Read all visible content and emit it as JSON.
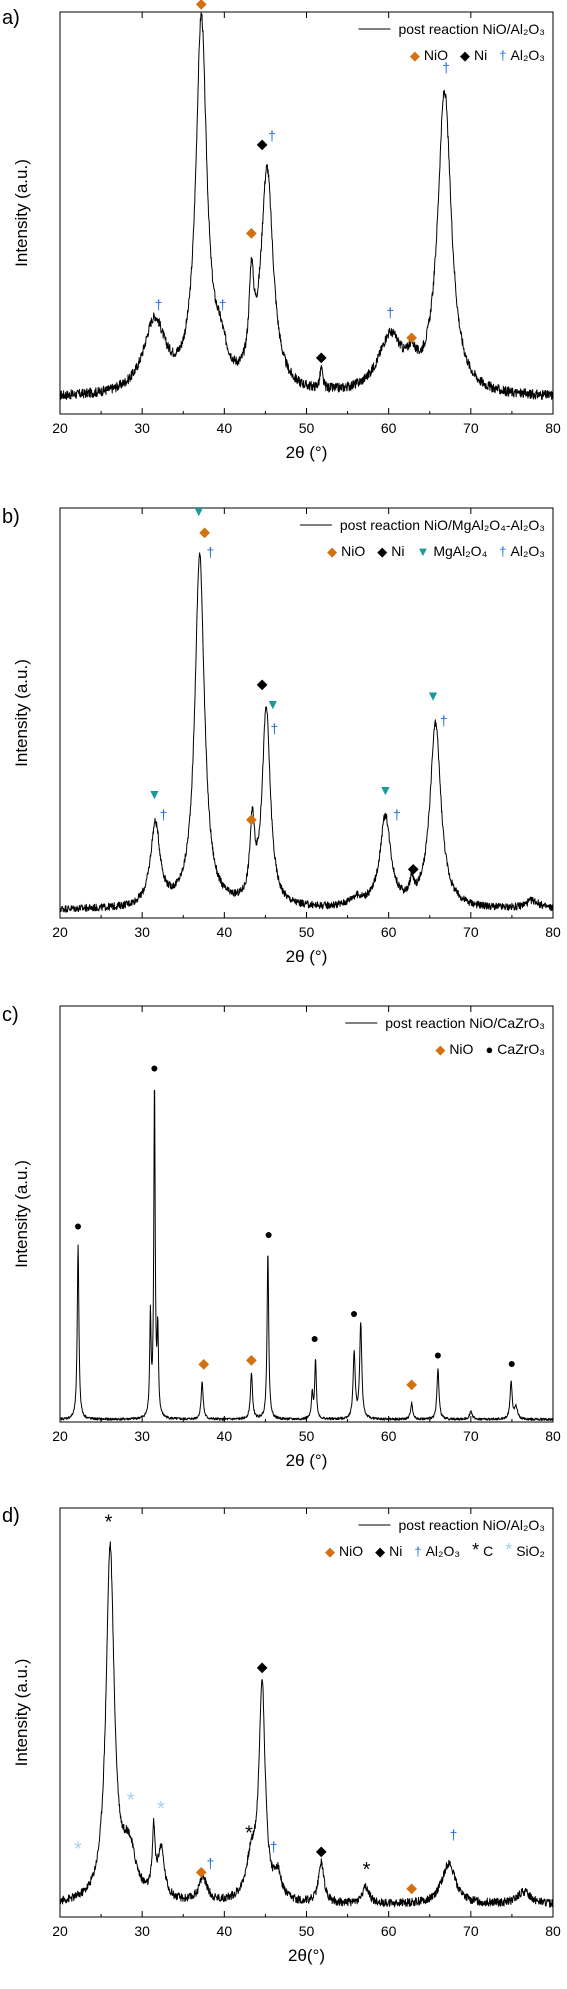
{
  "colors": {
    "NiO": "#d4700f",
    "Ni": "#000000",
    "Al2O3": "#1f6fd6",
    "MgAl2O4": "#1a9a9a",
    "CaZrO3": "#000000",
    "C": "#000000",
    "SiO2": "#a8cff2"
  },
  "chart_data": [
    {
      "panel_label": "a)",
      "type": "line",
      "xlabel": "2θ (°)",
      "ylabel": "Intensity (a.u.)",
      "xlim": [
        20,
        80
      ],
      "xticks": [
        20,
        30,
        40,
        50,
        60,
        70,
        80
      ],
      "ylim": [
        0,
        100
      ],
      "yticks_shown": false,
      "legend_placement": "top-right",
      "series": [
        {
          "name": "post reaction NiO/Al2O3",
          "line_legend": "post reaction NiO/Al₂O₃"
        }
      ],
      "legend_markers": [
        {
          "symbol": "◆",
          "color_key": "NiO",
          "label": "NiO"
        },
        {
          "symbol": "◆",
          "color_key": "Ni",
          "label": "Ni"
        },
        {
          "symbol": "†",
          "color_key": "Al2O3",
          "label": "Al₂O₃"
        }
      ],
      "baseline": 4,
      "noise": 1.2,
      "peaks": [
        [
          31.5,
          18,
          1.6
        ],
        [
          37.2,
          92,
          0.8
        ],
        [
          43.3,
          22,
          0.35
        ],
        [
          45.2,
          55,
          0.9
        ],
        [
          51.8,
          5,
          0.2
        ],
        [
          60.2,
          14,
          1.8
        ],
        [
          62.8,
          5,
          0.6
        ],
        [
          66.8,
          75,
          1.0
        ],
        [
          39.5,
          8,
          1.0
        ]
      ],
      "annotations": [
        {
          "x": 37.2,
          "y": 101,
          "symbol": "◆",
          "color_key": "NiO"
        },
        {
          "x": 32.0,
          "y": 26,
          "symbol": "†",
          "color_key": "Al2O3"
        },
        {
          "x": 39.8,
          "y": 26,
          "symbol": "†",
          "color_key": "Al2O3"
        },
        {
          "x": 43.3,
          "y": 44,
          "symbol": "◆",
          "color_key": "NiO"
        },
        {
          "x": 44.6,
          "y": 66,
          "symbol": "◆",
          "color_key": "Ni"
        },
        {
          "x": 45.8,
          "y": 68,
          "symbol": "†",
          "color_key": "Al2O3"
        },
        {
          "x": 51.8,
          "y": 13,
          "symbol": "◆",
          "color_key": "Ni"
        },
        {
          "x": 60.2,
          "y": 24,
          "symbol": "†",
          "color_key": "Al2O3"
        },
        {
          "x": 62.8,
          "y": 18,
          "symbol": "◆",
          "color_key": "NiO"
        },
        {
          "x": 67.0,
          "y": 85,
          "symbol": "†",
          "color_key": "Al2O3"
        }
      ]
    },
    {
      "panel_label": "b)",
      "type": "line",
      "xlabel": "2θ (°)",
      "ylabel": "Intensity (a.u.)",
      "xlim": [
        20,
        80
      ],
      "xticks": [
        20,
        30,
        40,
        50,
        60,
        70,
        80
      ],
      "ylim": [
        0,
        100
      ],
      "yticks_shown": false,
      "legend_placement": "top-right",
      "series": [
        {
          "name": "post reaction NiO/MgAl2O4-Al2O3",
          "line_legend": "post reaction NiO/MgAl₂O₄-Al₂O₃"
        }
      ],
      "legend_markers": [
        {
          "symbol": "◆",
          "color_key": "NiO",
          "label": "NiO"
        },
        {
          "symbol": "◆",
          "color_key": "Ni",
          "label": "Ni"
        },
        {
          "symbol": "▼",
          "color_key": "MgAl2O4",
          "label": "MgAl₂O₄"
        },
        {
          "symbol": "†",
          "color_key": "Al2O3",
          "label": "Al₂O₃"
        }
      ],
      "baseline": 2,
      "noise": 0.9,
      "peaks": [
        [
          31.6,
          20,
          0.7
        ],
        [
          37.0,
          86,
          0.7
        ],
        [
          43.4,
          18,
          0.35
        ],
        [
          45.1,
          48,
          0.6
        ],
        [
          59.6,
          22,
          0.8
        ],
        [
          62.8,
          4,
          0.3
        ],
        [
          65.7,
          45,
          0.8
        ],
        [
          56.0,
          2,
          1.0
        ],
        [
          77.5,
          2,
          1.0
        ]
      ],
      "annotations": [
        {
          "x": 31.5,
          "y": 29,
          "symbol": "▼",
          "color_key": "MgAl2O4"
        },
        {
          "x": 32.6,
          "y": 24,
          "symbol": "†",
          "color_key": "Al2O3"
        },
        {
          "x": 36.9,
          "y": 98,
          "symbol": "▼",
          "color_key": "MgAl2O4"
        },
        {
          "x": 37.6,
          "y": 93,
          "symbol": "◆",
          "color_key": "NiO"
        },
        {
          "x": 38.3,
          "y": 88,
          "symbol": "†",
          "color_key": "Al2O3"
        },
        {
          "x": 43.3,
          "y": 23,
          "symbol": "◆",
          "color_key": "NiO"
        },
        {
          "x": 44.6,
          "y": 56,
          "symbol": "◆",
          "color_key": "Ni"
        },
        {
          "x": 45.9,
          "y": 51,
          "symbol": "▼",
          "color_key": "MgAl2O4"
        },
        {
          "x": 46.1,
          "y": 45,
          "symbol": "†",
          "color_key": "Al2O3"
        },
        {
          "x": 59.6,
          "y": 30,
          "symbol": "▼",
          "color_key": "MgAl2O4"
        },
        {
          "x": 61.0,
          "y": 24,
          "symbol": "†",
          "color_key": "Al2O3"
        },
        {
          "x": 63.0,
          "y": 11,
          "symbol": "◆",
          "color_key": "Ni"
        },
        {
          "x": 65.4,
          "y": 53,
          "symbol": "▼",
          "color_key": "MgAl2O4"
        },
        {
          "x": 66.7,
          "y": 47,
          "symbol": "†",
          "color_key": "Al2O3"
        }
      ]
    },
    {
      "panel_label": "c)",
      "type": "line",
      "xlabel": "2θ (°)",
      "ylabel": "Intensity (a.u.)",
      "xlim": [
        20,
        80
      ],
      "xticks": [
        20,
        30,
        40,
        50,
        60,
        70,
        80
      ],
      "ylim": [
        0,
        100
      ],
      "yticks_shown": false,
      "legend_placement": "top-right",
      "series": [
        {
          "name": "post reaction NiO/CaZrO3",
          "line_legend": "post reaction NiO/CaZrO₃"
        }
      ],
      "legend_markers": [
        {
          "symbol": "◆",
          "color_key": "NiO",
          "label": "NiO"
        },
        {
          "symbol": "●",
          "color_key": "CaZrO3",
          "label": "CaZrO₃"
        }
      ],
      "baseline": 0.6,
      "noise": 0.3,
      "peaks": [
        [
          22.2,
          42,
          0.12
        ],
        [
          31.0,
          24,
          0.1
        ],
        [
          31.5,
          80,
          0.1
        ],
        [
          31.9,
          20,
          0.1
        ],
        [
          37.3,
          9,
          0.15
        ],
        [
          43.3,
          11,
          0.15
        ],
        [
          45.3,
          40,
          0.12
        ],
        [
          50.7,
          6,
          0.12
        ],
        [
          51.1,
          14,
          0.12
        ],
        [
          55.8,
          16,
          0.15
        ],
        [
          56.6,
          23,
          0.15
        ],
        [
          62.8,
          4,
          0.15
        ],
        [
          66.0,
          12,
          0.15
        ],
        [
          70.0,
          2,
          0.2
        ],
        [
          74.9,
          9,
          0.15
        ],
        [
          75.5,
          3,
          0.2
        ]
      ],
      "annotations": [
        {
          "x": 22.2,
          "y": 46,
          "symbol": "●",
          "color_key": "CaZrO3"
        },
        {
          "x": 31.5,
          "y": 84,
          "symbol": "●",
          "color_key": "CaZrO3"
        },
        {
          "x": 37.5,
          "y": 13,
          "symbol": "◆",
          "color_key": "NiO"
        },
        {
          "x": 43.3,
          "y": 14,
          "symbol": "◆",
          "color_key": "NiO"
        },
        {
          "x": 45.4,
          "y": 44,
          "symbol": "●",
          "color_key": "CaZrO3"
        },
        {
          "x": 51.0,
          "y": 19,
          "symbol": "●",
          "color_key": "CaZrO3"
        },
        {
          "x": 55.8,
          "y": 25,
          "symbol": "●",
          "color_key": "CaZrO3"
        },
        {
          "x": 62.8,
          "y": 8,
          "symbol": "◆",
          "color_key": "NiO"
        },
        {
          "x": 66.0,
          "y": 15,
          "symbol": "●",
          "color_key": "CaZrO3"
        },
        {
          "x": 75.0,
          "y": 13,
          "symbol": "●",
          "color_key": "CaZrO3"
        }
      ]
    },
    {
      "panel_label": "d)",
      "type": "line",
      "xlabel": "2θ(°)",
      "ylabel": "Intensity (a.u.)",
      "xlim": [
        20,
        80
      ],
      "xticks": [
        20,
        30,
        40,
        50,
        60,
        70,
        80
      ],
      "ylim": [
        0,
        100
      ],
      "yticks_shown": false,
      "legend_placement": "top-right",
      "series": [
        {
          "name": "post reaction NiO/Al2O3",
          "line_legend": "post reaction NiO/Al₂O₃"
        }
      ],
      "legend_markers": [
        {
          "symbol": "◆",
          "color_key": "NiO",
          "label": "NiO"
        },
        {
          "symbol": "◆",
          "color_key": "Ni",
          "label": "Ni"
        },
        {
          "symbol": "†",
          "color_key": "Al2O3",
          "label": "Al₂O₃"
        },
        {
          "symbol": "*",
          "color_key": "C",
          "label": "C"
        },
        {
          "symbol": "*",
          "color_key": "SiO2",
          "label": "SiO₂"
        }
      ],
      "baseline": 3,
      "noise": 1.0,
      "peaks": [
        [
          26.1,
          86,
          0.6
        ],
        [
          28.4,
          12,
          1.0
        ],
        [
          31.4,
          15,
          0.2
        ],
        [
          32.3,
          12,
          0.5
        ],
        [
          37.4,
          6,
          0.6
        ],
        [
          43.3,
          10,
          0.8
        ],
        [
          44.6,
          52,
          0.45
        ],
        [
          46.5,
          6,
          0.5
        ],
        [
          51.8,
          10,
          0.4
        ],
        [
          57.2,
          4,
          0.5
        ],
        [
          67.3,
          10,
          1.0
        ],
        [
          76.5,
          3,
          1.0
        ]
      ],
      "annotations": [
        {
          "x": 25.9,
          "y": 95,
          "symbol": "*",
          "color_key": "C"
        },
        {
          "x": 22.2,
          "y": 15,
          "symbol": "*",
          "color_key": "SiO2"
        },
        {
          "x": 28.6,
          "y": 27,
          "symbol": "*",
          "color_key": "SiO2"
        },
        {
          "x": 32.3,
          "y": 25,
          "symbol": "*",
          "color_key": "SiO2"
        },
        {
          "x": 37.2,
          "y": 10,
          "symbol": "◆",
          "color_key": "NiO"
        },
        {
          "x": 38.3,
          "y": 12,
          "symbol": "†",
          "color_key": "Al2O3"
        },
        {
          "x": 43.0,
          "y": 19,
          "symbol": "*",
          "color_key": "C"
        },
        {
          "x": 44.6,
          "y": 60,
          "symbol": "◆",
          "color_key": "Ni"
        },
        {
          "x": 46.0,
          "y": 16,
          "symbol": "†",
          "color_key": "Al2O3"
        },
        {
          "x": 51.8,
          "y": 15,
          "symbol": "◆",
          "color_key": "Ni"
        },
        {
          "x": 57.3,
          "y": 10,
          "symbol": "*",
          "color_key": "C"
        },
        {
          "x": 62.8,
          "y": 6,
          "symbol": "◆",
          "color_key": "NiO"
        },
        {
          "x": 67.9,
          "y": 19,
          "symbol": "†",
          "color_key": "Al2O3"
        }
      ]
    }
  ]
}
